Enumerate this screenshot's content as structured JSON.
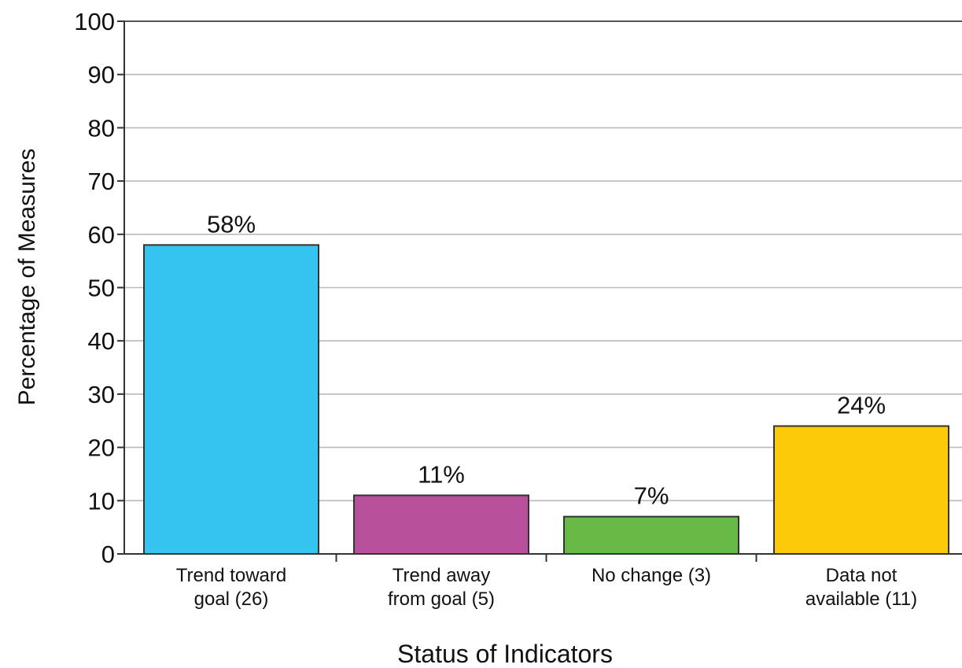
{
  "chart_data": {
    "type": "bar",
    "title": "",
    "xlabel": "Status of Indicators",
    "ylabel": "Percentage of Measures",
    "ylim": [
      0,
      100
    ],
    "yticks": [
      0,
      10,
      20,
      30,
      40,
      50,
      60,
      70,
      80,
      90,
      100
    ],
    "grid": true,
    "categories": [
      [
        "Trend toward",
        "goal (26)"
      ],
      [
        "Trend away",
        "from goal (5)"
      ],
      [
        "No change (3)"
      ],
      [
        "Data not",
        "available (11)"
      ]
    ],
    "values": [
      58,
      11,
      7,
      24
    ],
    "data_labels": [
      "58%",
      "11%",
      "7%",
      "24%"
    ],
    "colors": [
      "#35c3f0",
      "#b8509b",
      "#67ba45",
      "#fdca0a"
    ]
  }
}
